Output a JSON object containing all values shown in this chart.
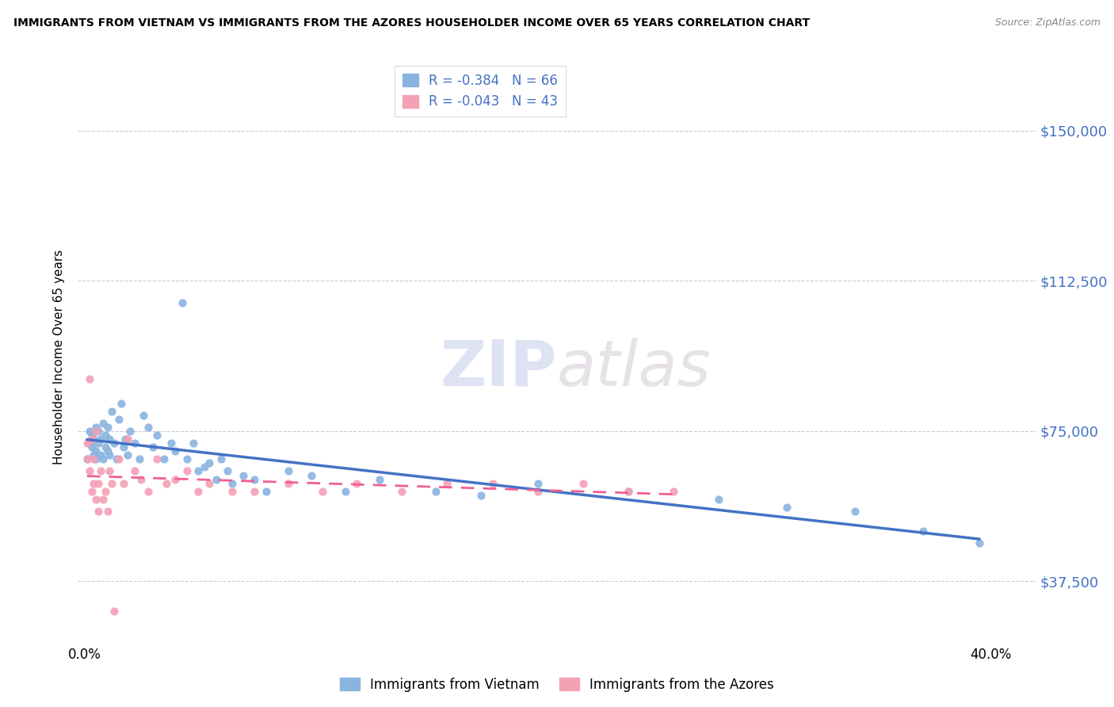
{
  "title": "IMMIGRANTS FROM VIETNAM VS IMMIGRANTS FROM THE AZORES HOUSEHOLDER INCOME OVER 65 YEARS CORRELATION CHART",
  "source": "Source: ZipAtlas.com",
  "ylabel": "Householder Income Over 65 years",
  "ytick_values": [
    37500,
    75000,
    112500,
    150000
  ],
  "ylim": [
    22000,
    165000
  ],
  "xlim": [
    -0.003,
    0.42
  ],
  "series1_label": "Immigrants from Vietnam",
  "series2_label": "Immigrants from the Azores",
  "color1": "#8ab4e0",
  "color2": "#f4a0b5",
  "line1_color": "#4472c4",
  "line2_color": "#f06090",
  "R1": -0.384,
  "N1": 66,
  "R2": -0.043,
  "N2": 43,
  "vietnam_x": [
    0.001,
    0.002,
    0.002,
    0.003,
    0.003,
    0.004,
    0.004,
    0.005,
    0.005,
    0.005,
    0.006,
    0.006,
    0.007,
    0.007,
    0.008,
    0.008,
    0.009,
    0.009,
    0.01,
    0.01,
    0.011,
    0.011,
    0.012,
    0.013,
    0.014,
    0.015,
    0.016,
    0.017,
    0.018,
    0.019,
    0.02,
    0.022,
    0.024,
    0.026,
    0.028,
    0.03,
    0.032,
    0.035,
    0.038,
    0.04,
    0.043,
    0.045,
    0.048,
    0.05,
    0.053,
    0.055,
    0.058,
    0.06,
    0.063,
    0.065,
    0.07,
    0.075,
    0.08,
    0.09,
    0.1,
    0.115,
    0.13,
    0.155,
    0.175,
    0.2,
    0.24,
    0.28,
    0.31,
    0.34,
    0.37,
    0.395
  ],
  "vietnam_y": [
    68000,
    72000,
    75000,
    71000,
    74000,
    69000,
    73000,
    70000,
    76000,
    68000,
    72000,
    75000,
    69000,
    73000,
    68000,
    77000,
    71000,
    74000,
    76000,
    70000,
    69000,
    73000,
    80000,
    72000,
    68000,
    78000,
    82000,
    71000,
    73000,
    69000,
    75000,
    72000,
    68000,
    79000,
    76000,
    71000,
    74000,
    68000,
    72000,
    70000,
    107000,
    68000,
    72000,
    65000,
    66000,
    67000,
    63000,
    68000,
    65000,
    62000,
    64000,
    63000,
    60000,
    65000,
    64000,
    60000,
    63000,
    60000,
    59000,
    62000,
    60000,
    58000,
    56000,
    55000,
    50000,
    47000
  ],
  "azores_x": [
    0.001,
    0.001,
    0.002,
    0.002,
    0.003,
    0.003,
    0.004,
    0.004,
    0.005,
    0.005,
    0.006,
    0.006,
    0.007,
    0.008,
    0.009,
    0.01,
    0.011,
    0.012,
    0.013,
    0.015,
    0.017,
    0.019,
    0.022,
    0.025,
    0.028,
    0.032,
    0.036,
    0.04,
    0.045,
    0.05,
    0.055,
    0.065,
    0.075,
    0.09,
    0.105,
    0.12,
    0.14,
    0.16,
    0.18,
    0.2,
    0.22,
    0.24,
    0.26
  ],
  "azores_y": [
    72000,
    68000,
    88000,
    65000,
    60000,
    73000,
    62000,
    68000,
    58000,
    75000,
    55000,
    62000,
    65000,
    58000,
    60000,
    55000,
    65000,
    62000,
    30000,
    68000,
    62000,
    73000,
    65000,
    63000,
    60000,
    68000,
    62000,
    63000,
    65000,
    60000,
    62000,
    60000,
    60000,
    62000,
    60000,
    62000,
    60000,
    62000,
    62000,
    60000,
    62000,
    60000,
    60000
  ]
}
